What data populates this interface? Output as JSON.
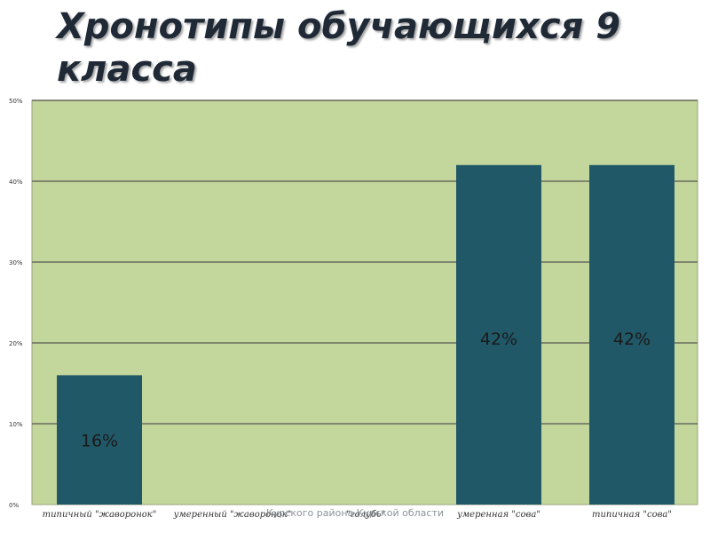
{
  "title": {
    "line1": "Хронотипы обучающихся 9",
    "line2": "класса"
  },
  "footer_note": "Курского района Курской области",
  "colors": {
    "plot_bg": "#c3d69b",
    "bar": "#215868",
    "grid": "#4a4a4a",
    "bar_label": "#1a1a1a"
  },
  "chart_data": {
    "type": "bar",
    "title": "Хронотипы обучающихся 9 класса",
    "categories": [
      "типичный \"жаворонок\"",
      "умеренный \"жаворонок\"",
      "\"голубь\"",
      "умеренная \"сова\"",
      "типичная \"сова\""
    ],
    "values": [
      16,
      0,
      0,
      42,
      42
    ],
    "data_labels": [
      "16%",
      "",
      "",
      "42%",
      "42%"
    ],
    "yticks": [
      "0%",
      "10%",
      "20%",
      "30%",
      "40%",
      "50%"
    ],
    "ylim": [
      0,
      50
    ],
    "grid": true,
    "xlabel": "",
    "ylabel": ""
  }
}
